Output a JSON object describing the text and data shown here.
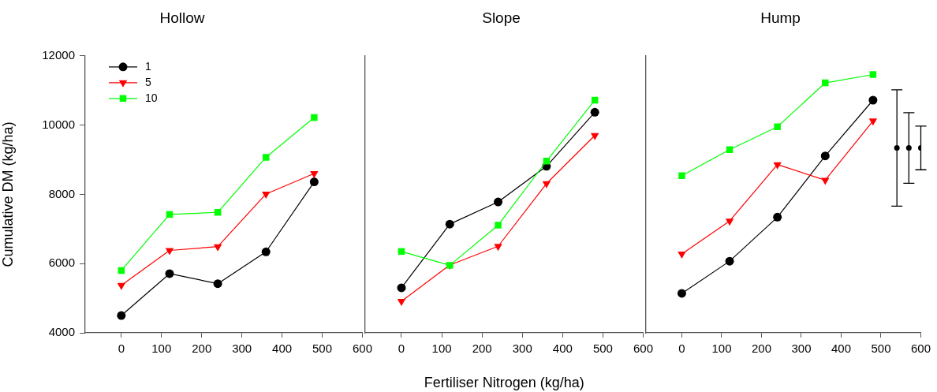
{
  "chart_data": [
    {
      "type": "line",
      "title": "Hollow",
      "ylabel": "Cumulative DM (kg/ha)",
      "xlim": [
        -90,
        600
      ],
      "xticks": [
        0,
        100,
        200,
        300,
        400,
        500,
        600
      ],
      "ylim": [
        4000,
        12000
      ],
      "yticks": [
        4000,
        6000,
        8000,
        10000,
        12000
      ],
      "legend": "top left",
      "x": [
        0,
        120,
        240,
        360,
        480
      ],
      "series": [
        {
          "name": "1",
          "color": "#000000",
          "marker": "circle",
          "values": [
            4500,
            5710,
            5420,
            6340,
            8360
          ]
        },
        {
          "name": "5",
          "color": "#ff0000",
          "marker": "triangle",
          "values": [
            5370,
            6380,
            6490,
            8010,
            8600
          ]
        },
        {
          "name": "10",
          "color": "#00ff00",
          "marker": "square",
          "values": [
            5800,
            7420,
            7480,
            9070,
            10220
          ]
        }
      ]
    },
    {
      "type": "line",
      "title": "Slope",
      "xlabel": "Fertiliser Nitrogen (kg/ha)",
      "xlim": [
        -90,
        600
      ],
      "xticks": [
        0,
        100,
        200,
        300,
        400,
        500,
        600
      ],
      "ylim": [
        4000,
        12000
      ],
      "yticks": [
        4000,
        6000,
        8000,
        10000,
        12000
      ],
      "tick_labels": "x",
      "x": [
        0,
        120,
        240,
        360,
        480
      ],
      "series": [
        {
          "color": "#000000",
          "marker": "circle",
          "values": [
            5300,
            7140,
            7780,
            8810,
            10370
          ]
        },
        {
          "color": "#ff0000",
          "marker": "triangle",
          "values": [
            4910,
            5960,
            6500,
            8310,
            9700
          ]
        },
        {
          "color": "#00ff00",
          "marker": "square",
          "values": [
            6350,
            5950,
            7110,
            8960,
            10720
          ]
        }
      ]
    },
    {
      "type": "line",
      "title": "Hump",
      "xlim": [
        -90,
        600
      ],
      "xticks": [
        0,
        100,
        200,
        300,
        400,
        500,
        600
      ],
      "ylim": [
        4000,
        12000
      ],
      "yticks": [
        4000,
        6000,
        8000,
        10000,
        12000
      ],
      "tick_labels": "x",
      "x": [
        0,
        120,
        240,
        360,
        480
      ],
      "series": [
        {
          "color": "#000000",
          "marker": "circle",
          "values": [
            5140,
            6070,
            7340,
            9110,
            10720
          ]
        },
        {
          "color": "#ff0000",
          "marker": "triangle",
          "values": [
            6280,
            7230,
            8860,
            8410,
            10120
          ]
        },
        {
          "color": "#00ff00",
          "marker": "square",
          "values": [
            8540,
            9290,
            9950,
            11220,
            11460
          ]
        },
        {
          "type": "scatter",
          "color": "#000000",
          "marker": "circle",
          "x": [
            540,
            570,
            600
          ],
          "values": [
            9340,
            9340,
            9340
          ],
          "errors": [
            1680,
            1020,
            630
          ]
        }
      ]
    }
  ]
}
